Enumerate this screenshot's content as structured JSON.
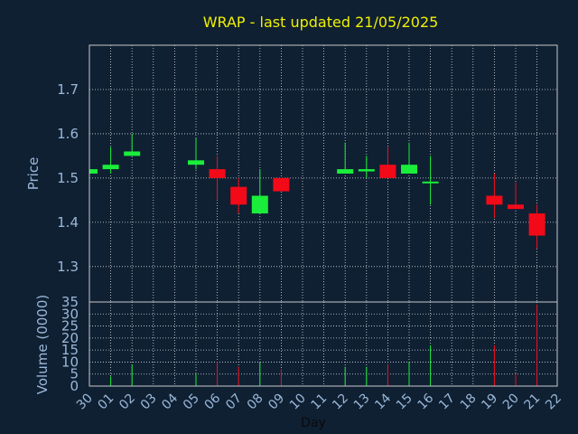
{
  "chart_data": {
    "type": "candlestick",
    "title": "WRAP - last updated 21/05/2025",
    "xlabel": "Day",
    "price_panel": {
      "ylabel": "Price",
      "ylim": [
        1.22,
        1.8
      ],
      "yticks": [
        "1.3",
        "1.4",
        "1.5",
        "1.6",
        "1.7"
      ],
      "grid": true
    },
    "volume_panel": {
      "ylabel": "Volume (0000)",
      "ylim": [
        0,
        35
      ],
      "yticks": [
        "0",
        "5",
        "10",
        "15",
        "20",
        "25",
        "30",
        "35"
      ],
      "grid": true
    },
    "x_ticks": [
      "30",
      "01",
      "02",
      "03",
      "04",
      "05",
      "06",
      "07",
      "08",
      "09",
      "10",
      "11",
      "12",
      "13",
      "14",
      "15",
      "16",
      "17",
      "18",
      "19",
      "20",
      "21",
      "22"
    ],
    "candles": [
      {
        "day": "30",
        "open": 1.51,
        "high": 1.52,
        "low": 1.51,
        "close": 1.52,
        "direction": "up"
      },
      {
        "day": "01",
        "open": 1.52,
        "high": 1.57,
        "low": 1.51,
        "close": 1.53,
        "direction": "up"
      },
      {
        "day": "02",
        "open": 1.55,
        "high": 1.6,
        "low": 1.55,
        "close": 1.56,
        "direction": "up"
      },
      {
        "day": "05",
        "open": 1.53,
        "high": 1.59,
        "low": 1.52,
        "close": 1.54,
        "direction": "up"
      },
      {
        "day": "06",
        "open": 1.52,
        "high": 1.55,
        "low": 1.45,
        "close": 1.5,
        "direction": "down"
      },
      {
        "day": "07",
        "open": 1.48,
        "high": 1.5,
        "low": 1.42,
        "close": 1.44,
        "direction": "down"
      },
      {
        "day": "08",
        "open": 1.42,
        "high": 1.52,
        "low": 1.42,
        "close": 1.46,
        "direction": "up"
      },
      {
        "day": "09",
        "open": 1.5,
        "high": 1.5,
        "low": 1.47,
        "close": 1.47,
        "direction": "down"
      },
      {
        "day": "12",
        "open": 1.51,
        "high": 1.58,
        "low": 1.51,
        "close": 1.52,
        "direction": "up"
      },
      {
        "day": "13",
        "open": 1.515,
        "high": 1.55,
        "low": 1.5,
        "close": 1.52,
        "direction": "up"
      },
      {
        "day": "14",
        "open": 1.53,
        "high": 1.57,
        "low": 1.5,
        "close": 1.5,
        "direction": "down"
      },
      {
        "day": "15",
        "open": 1.51,
        "high": 1.58,
        "low": 1.51,
        "close": 1.53,
        "direction": "up"
      },
      {
        "day": "16",
        "open": 1.49,
        "high": 1.55,
        "low": 1.44,
        "close": 1.49,
        "direction": "up"
      },
      {
        "day": "19",
        "open": 1.46,
        "high": 1.51,
        "low": 1.41,
        "close": 1.44,
        "direction": "down"
      },
      {
        "day": "20",
        "open": 1.44,
        "high": 1.49,
        "low": 1.43,
        "close": 1.43,
        "direction": "down"
      },
      {
        "day": "21",
        "open": 1.42,
        "high": 1.44,
        "low": 1.34,
        "close": 1.37,
        "direction": "down"
      }
    ],
    "volumes": [
      {
        "day": "30",
        "value": 0.5,
        "direction": "up"
      },
      {
        "day": "01",
        "value": 4,
        "direction": "up"
      },
      {
        "day": "02",
        "value": 9,
        "direction": "up"
      },
      {
        "day": "05",
        "value": 5,
        "direction": "up"
      },
      {
        "day": "06",
        "value": 10,
        "direction": "down"
      },
      {
        "day": "07",
        "value": 8,
        "direction": "down"
      },
      {
        "day": "08",
        "value": 10,
        "direction": "up"
      },
      {
        "day": "09",
        "value": 7,
        "direction": "down"
      },
      {
        "day": "12",
        "value": 8,
        "direction": "up"
      },
      {
        "day": "13",
        "value": 8,
        "direction": "up"
      },
      {
        "day": "14",
        "value": 9,
        "direction": "down"
      },
      {
        "day": "15",
        "value": 10,
        "direction": "up"
      },
      {
        "day": "16",
        "value": 17,
        "direction": "up"
      },
      {
        "day": "19",
        "value": 17,
        "direction": "down"
      },
      {
        "day": "20",
        "value": 5,
        "direction": "down"
      },
      {
        "day": "21",
        "value": 34,
        "direction": "down"
      }
    ],
    "colors": {
      "background": "#0f2033",
      "up": "#1aee3a",
      "down": "#f20a19",
      "title": "#f0f000",
      "axis_text": "#9ab8d8",
      "frame": "#c8c8c8",
      "grid": "#d8d8d8"
    }
  }
}
